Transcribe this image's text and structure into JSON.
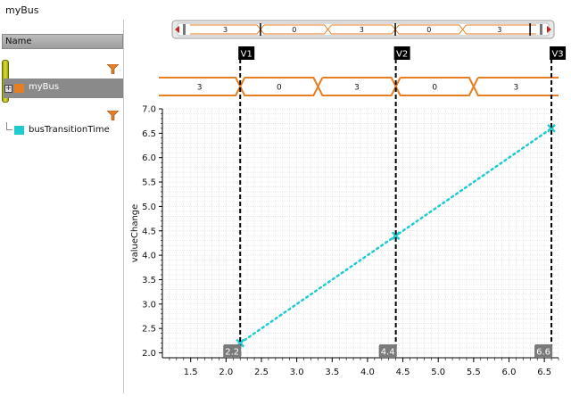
{
  "window": {
    "title": "myBus"
  },
  "sidebar": {
    "header_label": "Name",
    "bus_label": "myBus",
    "signal_label": "busTransitionTime",
    "expander_glyph": "+"
  },
  "colors": {
    "bus": "#e67e22",
    "signal": "#1ecbd0",
    "marker": "#000000",
    "panel": "#8a8a8a"
  },
  "icons": [
    "filter-icon",
    "expander-plus-icon",
    "scroll-left-arrow-icon",
    "scroll-right-arrow-icon"
  ],
  "overview": {
    "values": [
      "3",
      "0",
      "3",
      "0",
      "3"
    ]
  },
  "markers": [
    {
      "label": "V1",
      "x": 2.2,
      "x_label": "2.2"
    },
    {
      "label": "V2",
      "x": 4.4,
      "x_label": "4.4"
    },
    {
      "label": "V3",
      "x": 6.6,
      "x_label": "6.6"
    }
  ],
  "bus_track": {
    "values": [
      "3",
      "0",
      "3",
      "0",
      "3"
    ],
    "transitions": [
      2.2,
      3.3,
      4.4,
      5.5
    ]
  },
  "chart_data": {
    "type": "line",
    "xlim": [
      1.1,
      6.7
    ],
    "ylim": [
      1.9,
      7.0
    ],
    "xticks": [
      1.5,
      2.0,
      2.5,
      3.0,
      3.5,
      4.0,
      4.5,
      5.0,
      5.5,
      6.0,
      6.5
    ],
    "xtick_labels": [
      "1.5",
      "2.0",
      "2.5",
      "3.0",
      "3.5",
      "4.0",
      "4.5",
      "5.0",
      "5.5",
      "6.0",
      "6.5"
    ],
    "yticks": [
      2.0,
      2.5,
      3.0,
      3.5,
      4.0,
      4.5,
      5.0,
      5.5,
      6.0,
      6.5,
      7.0
    ],
    "ytick_labels": [
      "2.0",
      "2.5",
      "3.0",
      "3.5",
      "4.0",
      "4.5",
      "5.0",
      "5.5",
      "6.0",
      "6.5",
      "7.0"
    ],
    "ylabel": "valueChange",
    "grid": true,
    "series": [
      {
        "name": "busTransitionTime",
        "x": [
          2.2,
          4.4,
          6.6
        ],
        "y": [
          2.2,
          4.4,
          6.6
        ],
        "style": "dotted",
        "marker": "x"
      }
    ]
  }
}
